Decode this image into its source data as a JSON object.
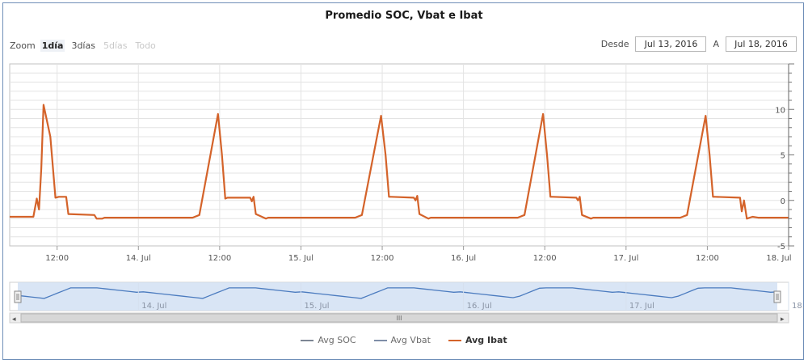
{
  "title": "Promedio SOC, Vbat e Ibat",
  "zoom": {
    "label": "Zoom",
    "buttons": [
      {
        "label": "1día",
        "state": "active"
      },
      {
        "label": "3días",
        "state": "normal"
      },
      {
        "label": "5días",
        "state": "disabled"
      },
      {
        "label": "Todo",
        "state": "disabled"
      }
    ]
  },
  "range": {
    "from_label": "Desde",
    "from_value": "Jul 13, 2016",
    "to_label": "A",
    "to_value": "Jul 18, 2016"
  },
  "colors": {
    "ibat": "#d4632a",
    "soc": "#7d8694",
    "vbat": "#7f8ea8",
    "navigator_fill": "#cfdff3",
    "navigator_line": "#4b7bbf",
    "grid": "#e3e3e3"
  },
  "chart_data": {
    "type": "line",
    "x_axis": {
      "type": "datetime",
      "range": [
        "2016-07-13T05:00",
        "2016-07-18T00:00"
      ],
      "tick_labels": [
        "12:00",
        "14. Jul",
        "12:00",
        "15. Jul",
        "12:00",
        "16. Jul",
        "12:00",
        "17. Jul",
        "12:00",
        "18. Jul"
      ]
    },
    "y_axis": {
      "range": [
        -5,
        15
      ],
      "tick_labels": [
        "-5",
        "0",
        "5",
        "10"
      ]
    },
    "series": [
      {
        "name": "Avg Ibat",
        "visible": true,
        "x": [
          "2016-07-13T05:00",
          "2016-07-13T08:30",
          "2016-07-13T09:00",
          "2016-07-13T09:20",
          "2016-07-13T09:40",
          "2016-07-13T10:00",
          "2016-07-13T11:00",
          "2016-07-13T11:45",
          "2016-07-13T12:15",
          "2016-07-13T13:20",
          "2016-07-13T13:40",
          "2016-07-13T17:30",
          "2016-07-13T17:50",
          "2016-07-13T18:40",
          "2016-07-13T19:00",
          "2016-07-14T08:00",
          "2016-07-14T09:00",
          "2016-07-14T11:45",
          "2016-07-14T12:20",
          "2016-07-14T12:50",
          "2016-07-14T13:10",
          "2016-07-14T16:30",
          "2016-07-14T16:45",
          "2016-07-14T17:00",
          "2016-07-14T17:20",
          "2016-07-14T18:50",
          "2016-07-14T19:10",
          "2016-07-15T08:00",
          "2016-07-15T09:00",
          "2016-07-15T11:50",
          "2016-07-15T12:30",
          "2016-07-15T13:00",
          "2016-07-15T13:20",
          "2016-07-15T16:40",
          "2016-07-15T16:55",
          "2016-07-15T17:10",
          "2016-07-15T17:30",
          "2016-07-15T18:50",
          "2016-07-15T19:10",
          "2016-07-16T08:00",
          "2016-07-16T09:00",
          "2016-07-16T11:45",
          "2016-07-16T12:20",
          "2016-07-16T12:50",
          "2016-07-16T13:10",
          "2016-07-16T16:40",
          "2016-07-16T16:55",
          "2016-07-16T17:10",
          "2016-07-16T17:30",
          "2016-07-16T18:50",
          "2016-07-16T19:10",
          "2016-07-17T08:00",
          "2016-07-17T09:00",
          "2016-07-17T11:45",
          "2016-07-17T12:20",
          "2016-07-17T12:50",
          "2016-07-17T13:10",
          "2016-07-17T16:50",
          "2016-07-17T17:05",
          "2016-07-17T17:25",
          "2016-07-17T17:50",
          "2016-07-17T18:40",
          "2016-07-17T19:30",
          "2016-07-18T00:00"
        ],
        "y": [
          -1.8,
          -1.8,
          0.2,
          -1.0,
          3.5,
          10.5,
          7.0,
          0.3,
          0.4,
          0.4,
          -1.5,
          -1.6,
          -2.0,
          -2.0,
          -1.9,
          -1.9,
          -1.6,
          9.5,
          5.0,
          0.2,
          0.3,
          0.3,
          -0.1,
          0.4,
          -1.5,
          -2.0,
          -1.9,
          -1.9,
          -1.6,
          9.3,
          5.0,
          0.4,
          0.4,
          0.3,
          0.0,
          0.5,
          -1.5,
          -2.0,
          -1.9,
          -1.9,
          -1.6,
          9.5,
          5.0,
          0.4,
          0.4,
          0.3,
          0.0,
          0.4,
          -1.6,
          -2.0,
          -1.9,
          -1.9,
          -1.6,
          9.3,
          5.0,
          0.4,
          0.4,
          0.3,
          -1.2,
          0.0,
          -2.0,
          -1.8,
          -1.9,
          -1.9
        ]
      },
      {
        "name": "Avg SOC",
        "visible": false
      },
      {
        "name": "Avg Vbat",
        "visible": false
      }
    ],
    "grid": true,
    "legend_position": "bottom-center"
  },
  "navigator": {
    "labels": [
      "14. Jul",
      "15. Jul",
      "16. Jul",
      "17. Jul",
      "18."
    ],
    "scrollbar_grip": "III",
    "left_arrow": "◂",
    "right_arrow": "▸"
  },
  "legend": [
    {
      "label": "Avg SOC",
      "color": "#7d8694",
      "active": false
    },
    {
      "label": "Avg Vbat",
      "color": "#7f8ea8",
      "active": false
    },
    {
      "label": "Avg Ibat",
      "color": "#d4632a",
      "active": true
    }
  ]
}
